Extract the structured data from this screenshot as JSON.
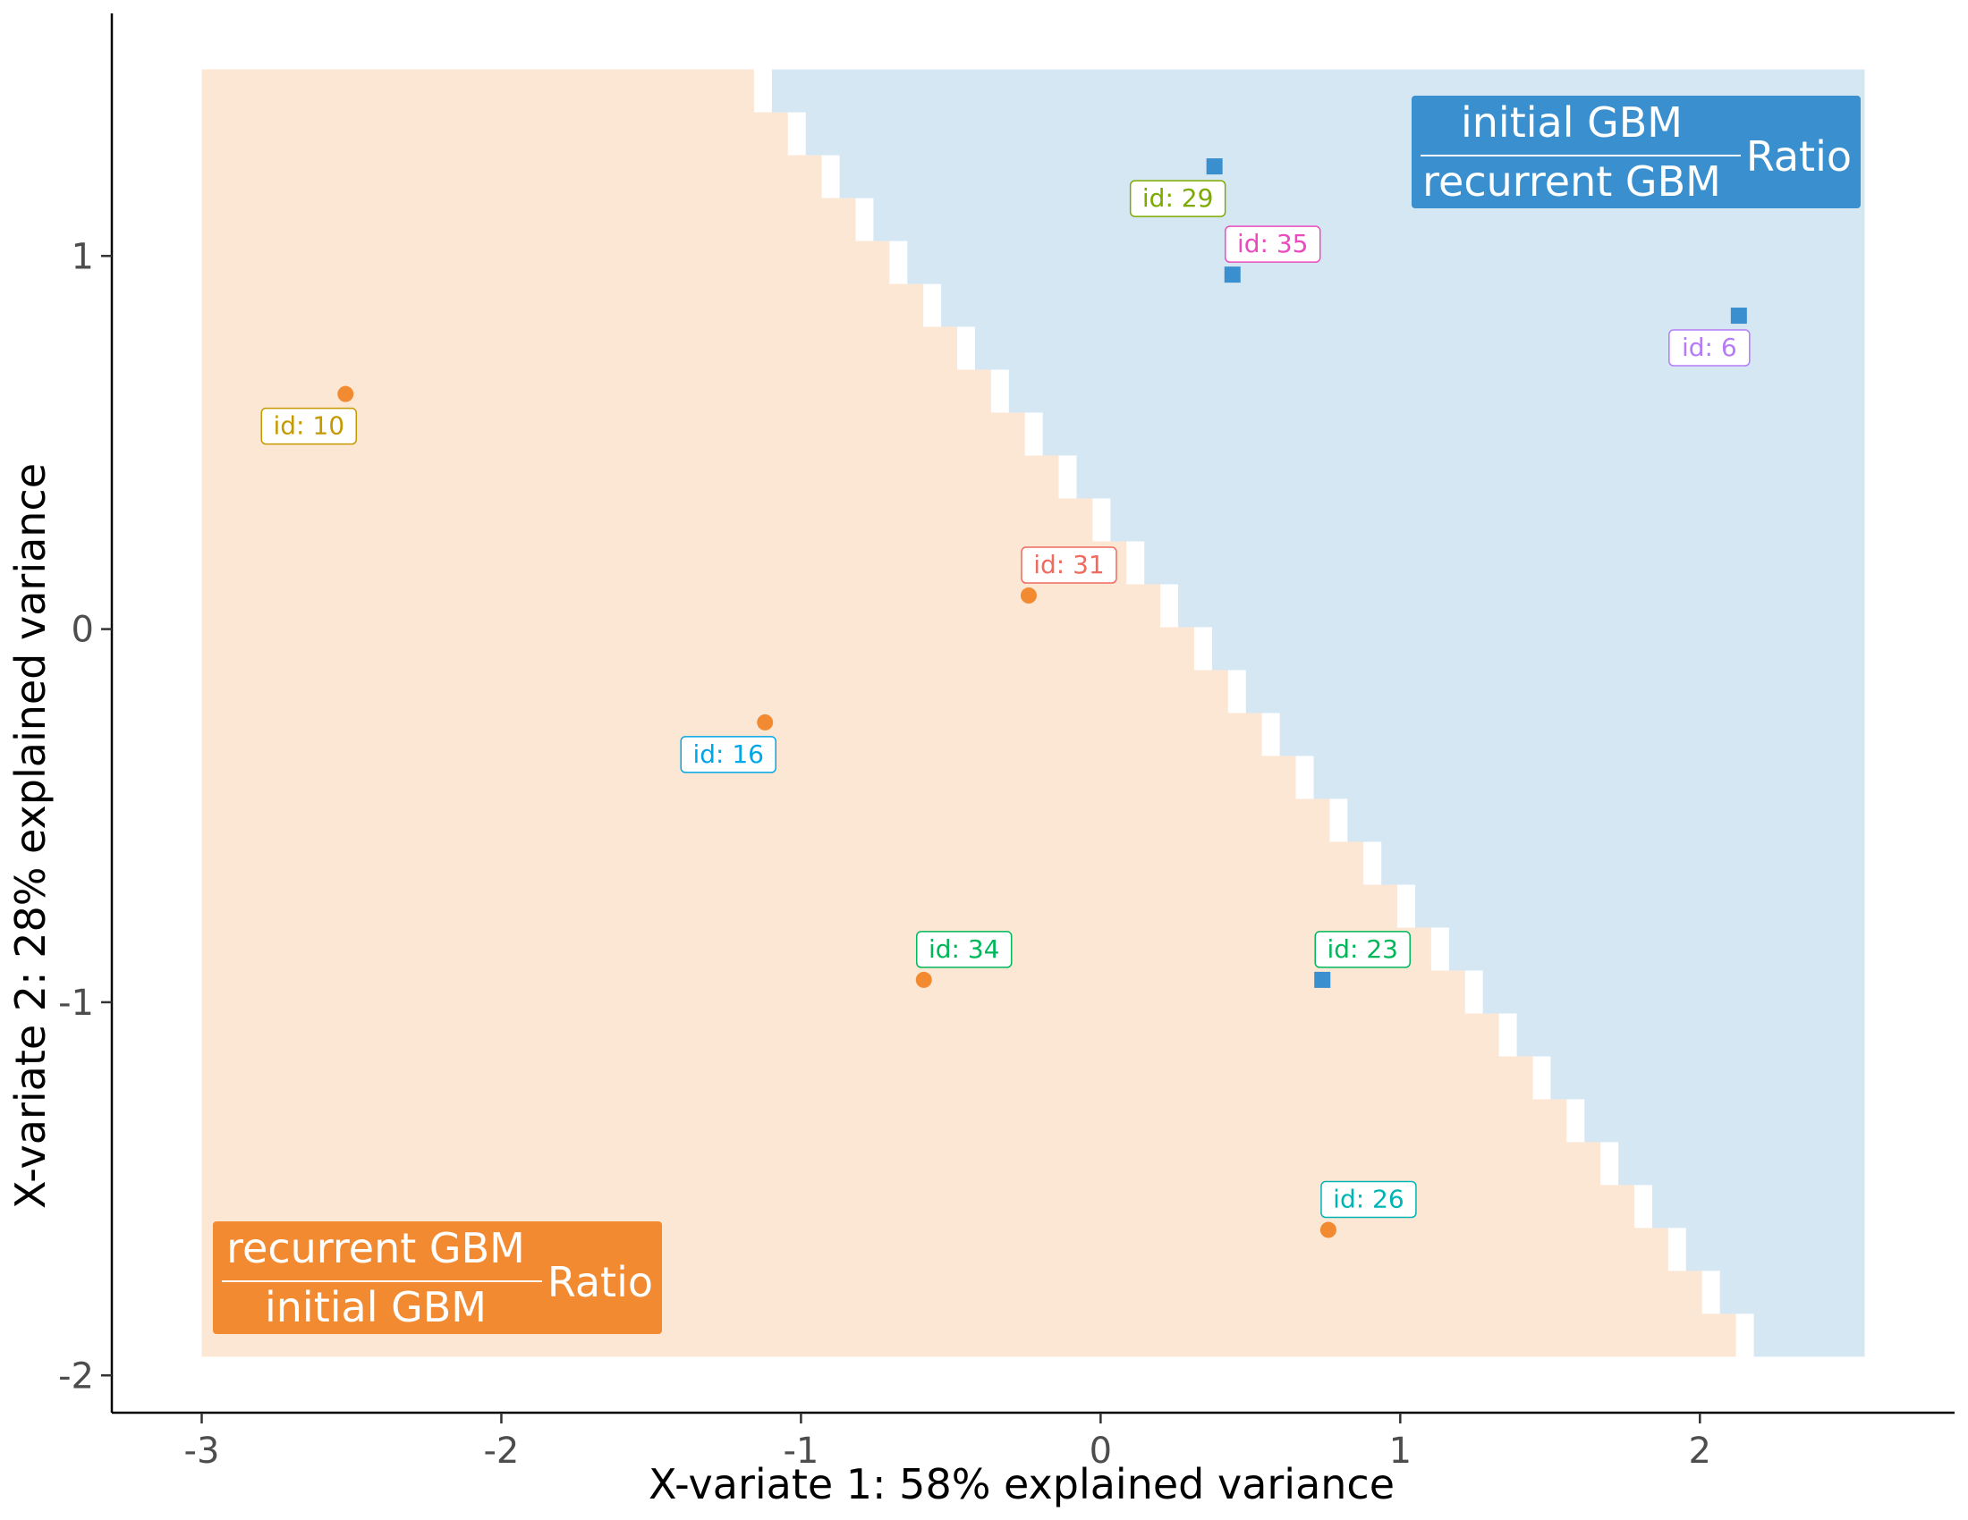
{
  "chart_data": {
    "type": "scatter",
    "xlabel": "X-variate 1: 58% explained variance",
    "ylabel": "X-variate 2: 28% explained variance",
    "xlim": [
      -3.3,
      2.85
    ],
    "ylim": [
      -2.1,
      1.65
    ],
    "x_ticks": [
      -3,
      -2,
      -1,
      0,
      1,
      2
    ],
    "y_ticks": [
      -2,
      -1,
      0,
      1
    ],
    "grid": false,
    "background_regions": [
      {
        "group": "recurrent",
        "color": "#fce6d4"
      },
      {
        "group": "initial",
        "color": "#d6e7f4"
      }
    ],
    "decision_boundary": [
      [
        -1.24,
        1.5
      ],
      [
        2.15,
        -1.95
      ]
    ],
    "region_extent": {
      "x": [
        -3.0,
        2.55
      ],
      "y": [
        -1.95,
        1.5
      ]
    },
    "groups": [
      {
        "key": "recurrent",
        "numerator": "recurrent GBM",
        "denominator": "initial GBM",
        "suffix": "Ratio",
        "color": "#f28a31",
        "marker": "circle",
        "legend_position": "bottom-left"
      },
      {
        "key": "initial",
        "numerator": "initial GBM",
        "denominator": "recurrent GBM",
        "suffix": "Ratio",
        "color": "#3a8fcf",
        "marker": "square",
        "legend_position": "top-right"
      }
    ],
    "points": [
      {
        "label": "id: 10",
        "x": -2.52,
        "y": 0.63,
        "group": "recurrent",
        "label_color": "#c49a00",
        "label_pos": "below-left"
      },
      {
        "label": "id: 31",
        "x": -0.24,
        "y": 0.09,
        "group": "recurrent",
        "label_color": "#f06a5e",
        "label_pos": "above-right"
      },
      {
        "label": "id: 16",
        "x": -1.12,
        "y": -0.25,
        "group": "recurrent",
        "label_color": "#00a6e6",
        "label_pos": "below-left"
      },
      {
        "label": "id: 34",
        "x": -0.59,
        "y": -0.94,
        "group": "recurrent",
        "label_color": "#00b85a",
        "label_pos": "above-right"
      },
      {
        "label": "id: 26",
        "x": 0.76,
        "y": -1.61,
        "group": "recurrent",
        "label_color": "#00b4b4",
        "label_pos": "above-right"
      },
      {
        "label": "id: 29",
        "x": 0.38,
        "y": 1.24,
        "group": "initial",
        "label_color": "#7caa00",
        "label_pos": "below-left"
      },
      {
        "label": "id: 35",
        "x": 0.44,
        "y": 0.95,
        "group": "initial",
        "label_color": "#ea4cc0",
        "label_pos": "above-right"
      },
      {
        "label": "id: 6",
        "x": 2.13,
        "y": 0.84,
        "group": "initial",
        "label_color": "#b57cf5",
        "label_pos": "below-left"
      },
      {
        "label": "id: 23",
        "x": 0.74,
        "y": -0.94,
        "group": "initial",
        "label_color": "#00b85a",
        "label_pos": "above-right"
      }
    ]
  }
}
